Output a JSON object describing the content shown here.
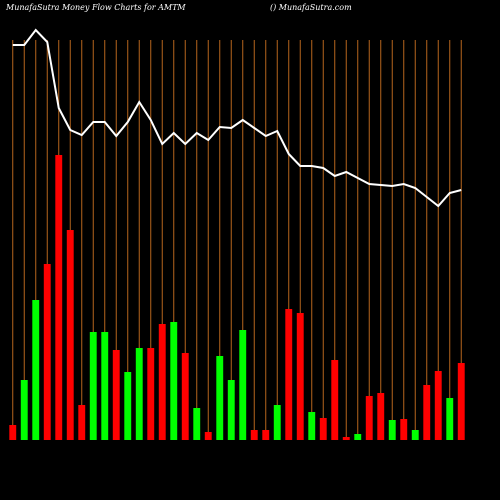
{
  "chart_data": {
    "type": "bar",
    "title": "MunafaSutra  Money Flow  Charts for AMTM",
    "subtitle": "() MunafaSutra.com",
    "categories": [
      null,
      null,
      null,
      null,
      null,
      null,
      null,
      null,
      null,
      null,
      null,
      null,
      null,
      null,
      null,
      null,
      null,
      null,
      null,
      null,
      null,
      null,
      null,
      null,
      null,
      null,
      null,
      null,
      null,
      null,
      null,
      null,
      null,
      null,
      null,
      null,
      null,
      null,
      null,
      null
    ],
    "ylim": [
      0,
      440
    ],
    "y2lim": [
      0,
      440
    ],
    "series": [
      {
        "type": "bar",
        "values": [
          15,
          60,
          140,
          176,
          285,
          210,
          35,
          108,
          108,
          90,
          68,
          92,
          92,
          116,
          118,
          87,
          32,
          8,
          84,
          60,
          110,
          10,
          10,
          35,
          131,
          127,
          28,
          22,
          80,
          3,
          6,
          44,
          47,
          20,
          21,
          10,
          55,
          69,
          42,
          77
        ],
        "colors": [
          "#ff0000",
          "#00ff00",
          "#00ff00",
          "#ff0000",
          "#ff0000",
          "#ff0000",
          "#ff0000",
          "#00ff00",
          "#00ff00",
          "#ff0000",
          "#00ff00",
          "#00ff00",
          "#ff0000",
          "#ff0000",
          "#00ff00",
          "#ff0000",
          "#00ff00",
          "#ff0000",
          "#00ff00",
          "#00ff00",
          "#00ff00",
          "#ff0000",
          "#ff0000",
          "#00ff00",
          "#ff0000",
          "#ff0000",
          "#00ff00",
          "#ff0000",
          "#ff0000",
          "#ff0000",
          "#00ff00",
          "#ff0000",
          "#ff0000",
          "#00ff00",
          "#ff0000",
          "#00ff00",
          "#ff0000",
          "#ff0000",
          "#00ff00",
          "#ff0000"
        ]
      },
      {
        "type": "line",
        "axis": "y2",
        "color": "#ffffff",
        "values": [
          395,
          395,
          410,
          398,
          332,
          310,
          305,
          318,
          318,
          304,
          318,
          338,
          320,
          296,
          307,
          296,
          307,
          300,
          313,
          312,
          320,
          312,
          304,
          309,
          286,
          274,
          274,
          272,
          264,
          268,
          262,
          256,
          255,
          254,
          256,
          252,
          243,
          234,
          247,
          250
        ]
      }
    ],
    "column_line_color": "#b5651d"
  }
}
